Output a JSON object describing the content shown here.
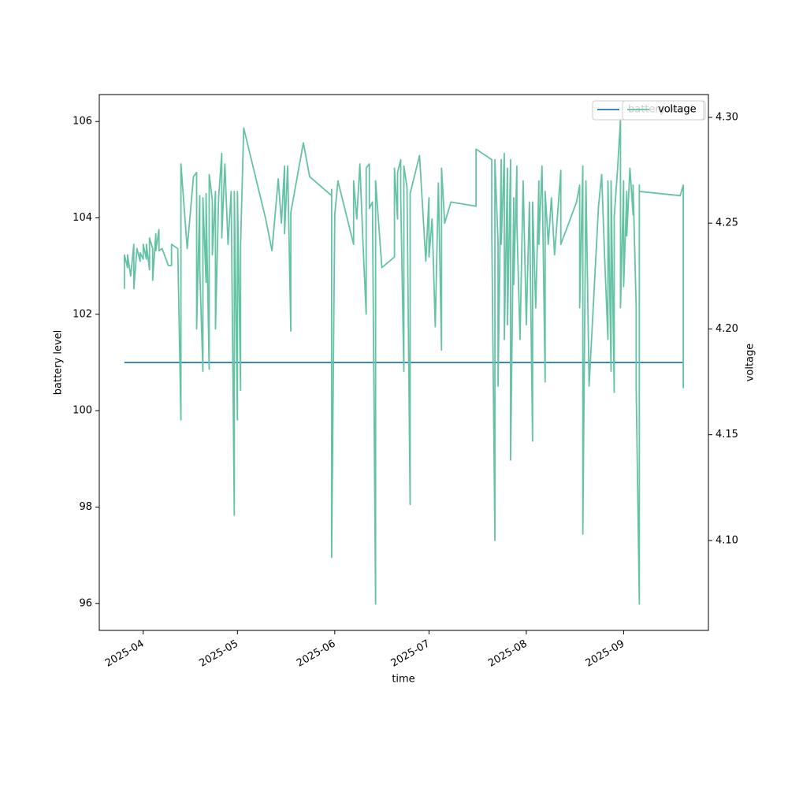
{
  "chart_data": {
    "type": "line",
    "xlabel": "time",
    "ylabel": "battery level",
    "y2label": "voltage",
    "xlim": [
      "2025-03-18",
      "2025-09-28"
    ],
    "xticks": [
      "2025-04",
      "2025-05",
      "2025-06",
      "2025-07",
      "2025-08",
      "2025-09"
    ],
    "ylim": [
      95.44,
      106.56
    ],
    "yticks": [
      96,
      98,
      100,
      102,
      104,
      106
    ],
    "y2lim": [
      4.0575,
      4.3108
    ],
    "y2ticks": [
      {
        "value": 4.1,
        "label": "4.10"
      },
      4.15,
      {
        "value": 4.2,
        "label": "4.20"
      },
      4.25,
      {
        "value": 4.3,
        "label": "4.30"
      }
    ],
    "legend": "upper right",
    "series": [
      {
        "name": "battery level",
        "color": "#1f77b4",
        "x": [
          "2025-03-26",
          "2025-09-20"
        ],
        "values": [
          101,
          101
        ]
      },
      {
        "name": "voltage",
        "color": "#66c2a5",
        "axis": "y2",
        "x": [
          "2025-03-26",
          "2025-03-26",
          "2025-03-27",
          "2025-03-27",
          "2025-03-28",
          "2025-03-29",
          "2025-03-29",
          "2025-03-30",
          "2025-03-31",
          "2025-03-31",
          "2025-04-01",
          "2025-04-01",
          "2025-04-02",
          "2025-04-02",
          "2025-04-03",
          "2025-04-03",
          "2025-04-04",
          "2025-04-04",
          "2025-04-05",
          "2025-04-05",
          "2025-04-06",
          "2025-04-06",
          "2025-04-07",
          "2025-04-09",
          "2025-04-10",
          "2025-04-10",
          "2025-04-12",
          "2025-04-13",
          "2025-04-13",
          "2025-04-15",
          "2025-04-17",
          "2025-04-18",
          "2025-04-18",
          "2025-04-19",
          "2025-04-19",
          "2025-04-20",
          "2025-04-20",
          "2025-04-21",
          "2025-04-21",
          "2025-04-22",
          "2025-04-22",
          "2025-04-23",
          "2025-04-23",
          "2025-04-24",
          "2025-04-24",
          "2025-04-25",
          "2025-04-26",
          "2025-04-26",
          "2025-04-27",
          "2025-04-28",
          "2025-04-29",
          "2025-04-30",
          "2025-04-30",
          "2025-05-01",
          "2025-05-01",
          "2025-05-02",
          "2025-05-02",
          "2025-05-03",
          "2025-05-10",
          "2025-05-12",
          "2025-05-14",
          "2025-05-15",
          "2025-05-16",
          "2025-05-16",
          "2025-05-17",
          "2025-05-18",
          "2025-05-18",
          "2025-05-22",
          "2025-05-24",
          "2025-05-31",
          "2025-05-31",
          "2025-05-31",
          "2025-06-01",
          "2025-06-02",
          "2025-06-07",
          "2025-06-07",
          "2025-06-08",
          "2025-06-09",
          "2025-06-10",
          "2025-06-11",
          "2025-06-11",
          "2025-06-12",
          "2025-06-12",
          "2025-06-13",
          "2025-06-14",
          "2025-06-14",
          "2025-06-16",
          "2025-06-20",
          "2025-06-20",
          "2025-06-21",
          "2025-06-21",
          "2025-06-22",
          "2025-06-22",
          "2025-06-23",
          "2025-06-23",
          "2025-06-24",
          "2025-06-25",
          "2025-06-25",
          "2025-06-28",
          "2025-06-30",
          "2025-07-01",
          "2025-07-01",
          "2025-07-02",
          "2025-07-03",
          "2025-07-04",
          "2025-07-05",
          "2025-07-05",
          "2025-07-06",
          "2025-07-08",
          "2025-07-16",
          "2025-07-16",
          "2025-07-21",
          "2025-07-21",
          "2025-07-22",
          "2025-07-22",
          "2025-07-23",
          "2025-07-23",
          "2025-07-24",
          "2025-07-24",
          "2025-07-25",
          "2025-07-25",
          "2025-07-26",
          "2025-07-26",
          "2025-07-27",
          "2025-07-27",
          "2025-07-28",
          "2025-07-28",
          "2025-07-29",
          "2025-07-29",
          "2025-07-30",
          "2025-07-31",
          "2025-08-01",
          "2025-08-02",
          "2025-08-03",
          "2025-08-03",
          "2025-08-04",
          "2025-08-05",
          "2025-08-05",
          "2025-08-06",
          "2025-08-07",
          "2025-08-07",
          "2025-08-08",
          "2025-08-09",
          "2025-08-10",
          "2025-08-12",
          "2025-08-12",
          "2025-08-17",
          "2025-08-18",
          "2025-08-18",
          "2025-08-19",
          "2025-08-19",
          "2025-08-20",
          "2025-08-21",
          "2025-08-24",
          "2025-08-25",
          "2025-08-26",
          "2025-08-27",
          "2025-08-27",
          "2025-08-28",
          "2025-08-28",
          "2025-08-29",
          "2025-08-29",
          "2025-08-30",
          "2025-08-31",
          "2025-08-31",
          "2025-09-01",
          "2025-09-01",
          "2025-09-02",
          "2025-09-02",
          "2025-09-03",
          "2025-09-04",
          "2025-09-04",
          "2025-09-05",
          "2025-09-05",
          "2025-09-06",
          "2025-09-06",
          "2025-09-06",
          "2025-09-19",
          "2025-09-20",
          "2025-09-20"
        ],
        "values": [
          4.219,
          4.235,
          4.229,
          4.235,
          4.225,
          4.24,
          4.219,
          4.238,
          4.232,
          4.236,
          4.233,
          4.24,
          4.233,
          4.24,
          4.228,
          4.243,
          4.238,
          4.223,
          4.245,
          4.237,
          4.247,
          4.237,
          4.238,
          4.23,
          4.23,
          4.24,
          4.238,
          4.157,
          4.278,
          4.238,
          4.272,
          4.274,
          4.2,
          4.263,
          4.228,
          4.18,
          4.262,
          4.222,
          4.264,
          4.181,
          4.273,
          4.261,
          4.235,
          4.265,
          4.2,
          4.262,
          4.283,
          4.243,
          4.278,
          4.24,
          4.265,
          4.112,
          4.265,
          4.157,
          4.265,
          4.171,
          4.24,
          4.295,
          4.252,
          4.237,
          4.271,
          4.25,
          4.277,
          4.245,
          4.277,
          4.199,
          4.255,
          4.288,
          4.272,
          4.263,
          4.266,
          4.092,
          4.254,
          4.27,
          4.24,
          4.27,
          4.252,
          4.278,
          4.24,
          4.207,
          4.276,
          4.278,
          4.257,
          4.26,
          4.07,
          4.27,
          4.229,
          4.234,
          4.276,
          4.252,
          4.274,
          4.28,
          4.263,
          4.18,
          4.277,
          4.267,
          4.117,
          4.264,
          4.282,
          4.232,
          4.262,
          4.234,
          4.252,
          4.201,
          4.269,
          4.19,
          4.276,
          4.25,
          4.26,
          4.258,
          4.285,
          4.28,
          4.247,
          4.1,
          4.28,
          4.241,
          4.173,
          4.28,
          4.24,
          4.283,
          4.195,
          4.276,
          4.202,
          4.28,
          4.138,
          4.262,
          4.221,
          4.277,
          4.25,
          4.195,
          4.27,
          4.202,
          4.26,
          4.147,
          4.26,
          4.21,
          4.27,
          4.24,
          4.277,
          4.175,
          4.265,
          4.24,
          4.262,
          4.235,
          4.275,
          4.24,
          4.26,
          4.268,
          4.21,
          4.277,
          4.103,
          4.27,
          4.173,
          4.258,
          4.273,
          4.232,
          4.195,
          4.27,
          4.18,
          4.27,
          4.17,
          4.253,
          4.274,
          4.299,
          4.21,
          4.27,
          4.22,
          4.265,
          4.244,
          4.276,
          4.254,
          4.268,
          4.21,
          4.172,
          4.07,
          4.268,
          4.265,
          4.263,
          4.268,
          4.172
        ]
      }
    ]
  }
}
